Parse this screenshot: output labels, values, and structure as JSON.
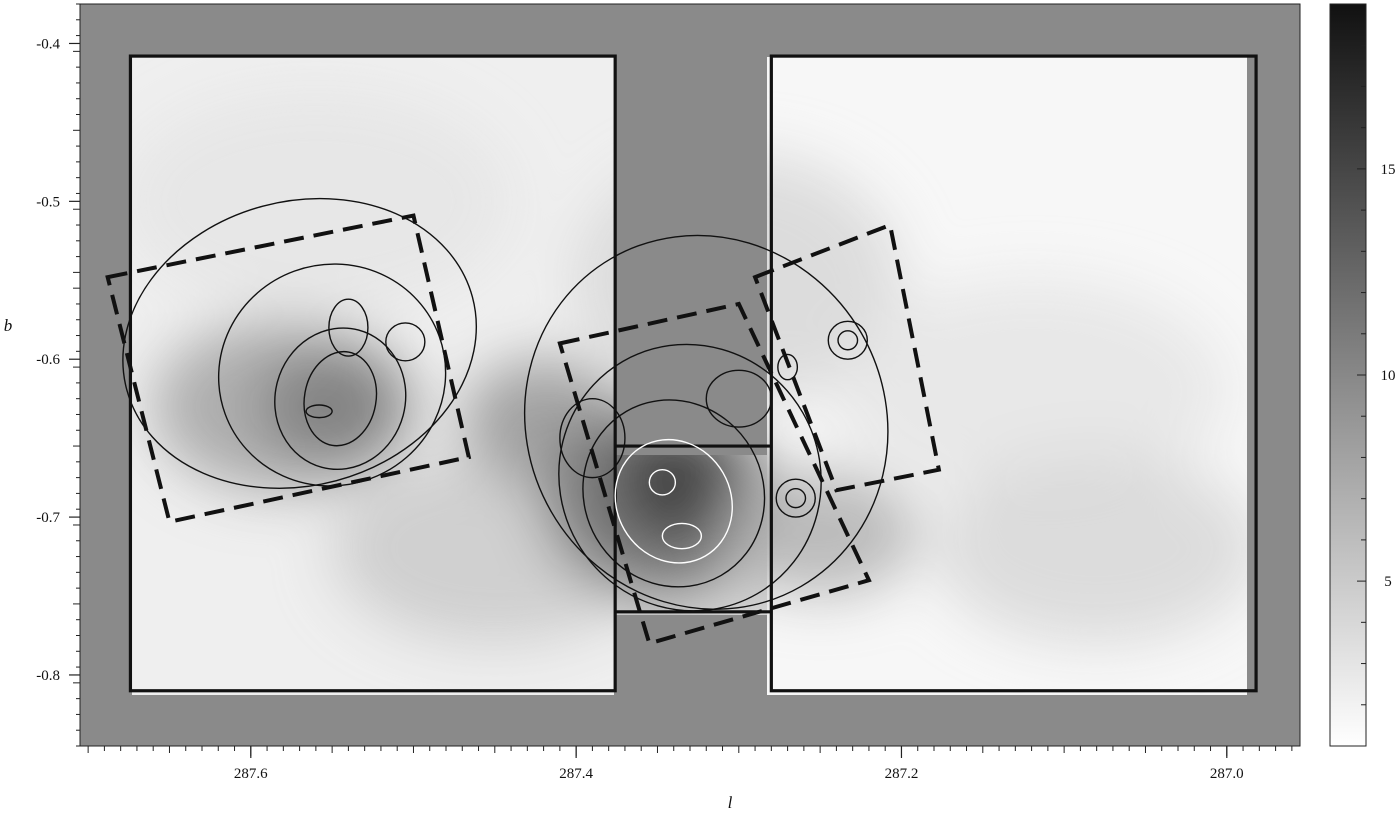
{
  "chart_data": {
    "type": "heatmap",
    "title": "",
    "xlabel": "l",
    "ylabel": "b",
    "xlim": [
      287.705,
      286.955
    ],
    "ylim": [
      -0.845,
      -0.375
    ],
    "x_direction": "reversed",
    "x_ticks": [
      {
        "value": 287.6,
        "label": "287.6"
      },
      {
        "value": 287.4,
        "label": "287.4"
      },
      {
        "value": 287.2,
        "label": "287.2"
      },
      {
        "value": 287.0,
        "label": "287.0"
      }
    ],
    "y_ticks": [
      {
        "value": -0.4,
        "label": "-0.4"
      },
      {
        "value": -0.5,
        "label": "-0.5"
      },
      {
        "value": -0.6,
        "label": "-0.6"
      },
      {
        "value": -0.7,
        "label": "-0.7"
      },
      {
        "value": -0.8,
        "label": "-0.8"
      }
    ],
    "colorbar": {
      "range": [
        1,
        19
      ],
      "colormap": "white-to-black (grayscale)",
      "ticks": [
        {
          "value": 5,
          "label": "5"
        },
        {
          "value": 10,
          "label": "10"
        },
        {
          "value": 15,
          "label": "15"
        }
      ]
    },
    "background_level": 9,
    "density_peaks": [
      {
        "l": 287.35,
        "b": -0.68,
        "value": 18
      },
      {
        "l": 287.58,
        "b": -0.63,
        "value": 12.5
      },
      {
        "l": 287.42,
        "b": -0.64,
        "value": 11
      }
    ],
    "survey_regions": [
      {
        "name": "left",
        "l": [
          287.674,
          287.376
        ],
        "b": [
          -0.81,
          -0.408
        ]
      },
      {
        "name": "right",
        "l": [
          287.28,
          286.982
        ],
        "b": [
          -0.81,
          -0.408
        ]
      }
    ],
    "survey_gap": {
      "l": [
        287.376,
        287.28
      ],
      "b": [
        -0.76,
        -0.655
      ]
    },
    "dashed_fields": [
      {
        "name": "west",
        "corners": [
          [
            287.688,
            -0.548
          ],
          [
            287.5,
            -0.509
          ],
          [
            287.466,
            -0.662
          ],
          [
            287.65,
            -0.703
          ]
        ]
      },
      {
        "name": "central",
        "corners": [
          [
            287.41,
            -0.59
          ],
          [
            287.3,
            -0.565
          ],
          [
            287.22,
            -0.74
          ],
          [
            287.355,
            -0.78
          ]
        ]
      },
      {
        "name": "east",
        "corners": [
          [
            287.29,
            -0.548
          ],
          [
            287.207,
            -0.515
          ],
          [
            287.177,
            -0.67
          ],
          [
            287.24,
            -0.683
          ]
        ]
      }
    ],
    "contour_peaks": [
      {
        "l": 287.558,
        "b": -0.633
      },
      {
        "l": 287.347,
        "b": -0.678
      },
      {
        "l": 287.335,
        "b": -0.712
      }
    ]
  }
}
